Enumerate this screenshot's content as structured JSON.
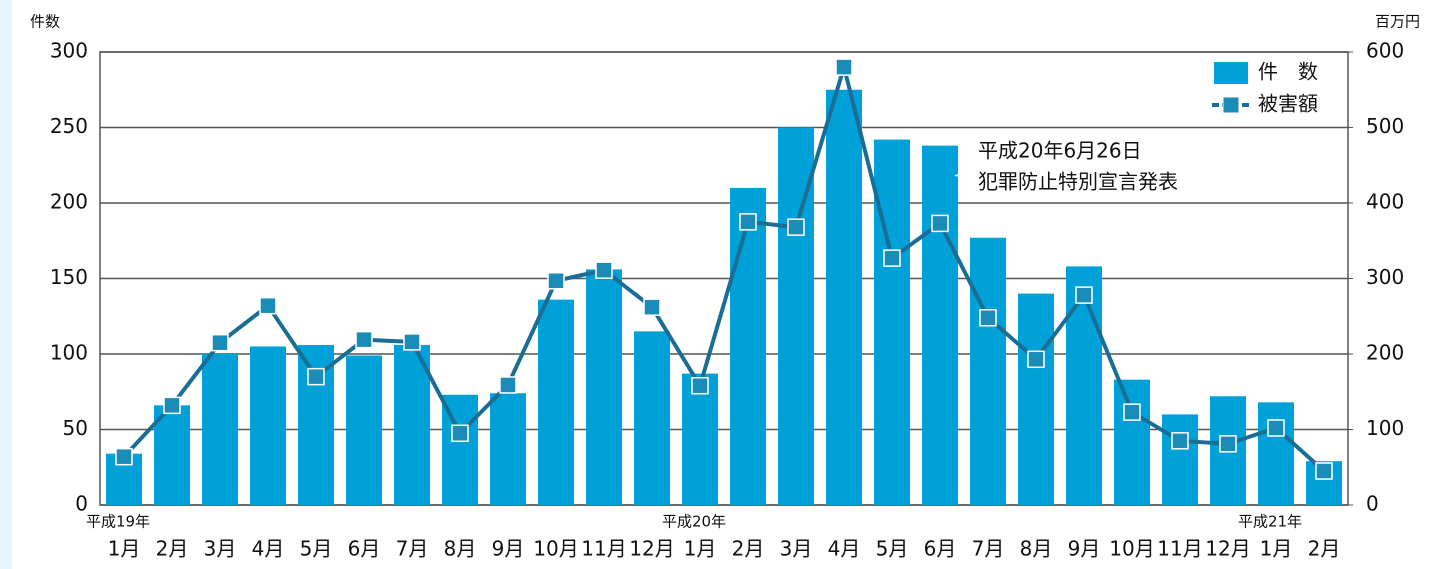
{
  "chart_data": {
    "type": "bar_line",
    "y_label": "件数",
    "y2_label": "百万円",
    "categories": [
      "1月",
      "2月",
      "3月",
      "4月",
      "5月",
      "6月",
      "7月",
      "8月",
      "9月",
      "10月",
      "11月",
      "12月",
      "1月",
      "2月",
      "3月",
      "4月",
      "5月",
      "6月",
      "7月",
      "8月",
      "9月",
      "10月",
      "11月",
      "12月",
      "1月",
      "2月"
    ],
    "year_labels": [
      "平成19年",
      null,
      null,
      null,
      null,
      null,
      null,
      null,
      null,
      null,
      null,
      null,
      "平成20年",
      null,
      null,
      null,
      null,
      null,
      null,
      null,
      null,
      null,
      null,
      null,
      "平成21年",
      null
    ],
    "series": [
      {
        "name": "件　数",
        "color": "#00a0d8",
        "kind": "bar",
        "values": [
          34,
          66,
          100,
          105,
          106,
          99,
          106,
          73,
          74,
          136,
          156,
          115,
          87,
          210,
          250,
          275,
          242,
          238,
          177,
          140,
          158,
          83,
          60,
          72,
          68,
          29
        ]
      },
      {
        "name": "被害額",
        "color": "#1a6e96",
        "marker_color": "#1b8bb8",
        "kind": "line",
        "axis": "y2",
        "values": [
          64,
          132,
          215,
          264,
          170,
          219,
          216,
          95,
          159,
          297,
          311,
          262,
          158,
          375,
          368,
          580,
          327,
          373,
          248,
          193,
          278,
          123,
          85,
          81,
          102,
          45
        ]
      }
    ],
    "ylim": [
      0,
      300
    ],
    "yticks": [
      0,
      50,
      100,
      150,
      200,
      250,
      300
    ],
    "y2lim": [
      0,
      600
    ],
    "y2ticks": [
      0,
      100,
      200,
      300,
      400,
      500,
      600
    ],
    "grid": true,
    "legend": "top-right",
    "annotation": {
      "lines": [
        "平成20年6月26日",
        "犯罪防止特別宣言発表"
      ],
      "category_index": 17
    }
  }
}
